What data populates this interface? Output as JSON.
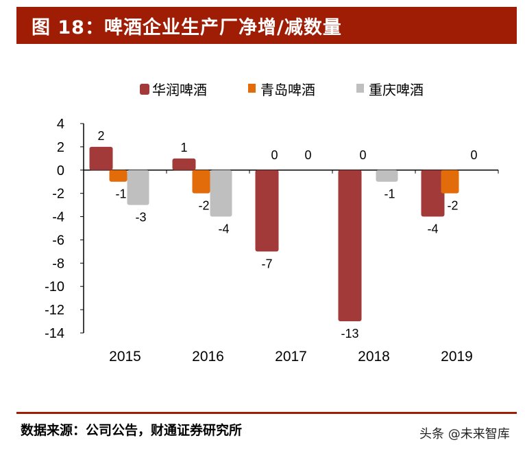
{
  "header": {
    "title": "图 18：啤酒企业生产厂净增/减数量"
  },
  "footer": {
    "source": "数据来源：公司公告，财通证券研究所",
    "watermark": "头条 @未来智库"
  },
  "chart_data": {
    "type": "bar",
    "title": "",
    "categories": [
      "2015",
      "2016",
      "2017",
      "2018",
      "2019"
    ],
    "series": [
      {
        "name": "华润啤酒",
        "color": "#a23a3a",
        "values": [
          2,
          1,
          -7,
          -13,
          -4
        ]
      },
      {
        "name": "青岛啤酒",
        "color": "#e36c0a",
        "values": [
          -1,
          -2,
          0,
          0,
          -2
        ]
      },
      {
        "name": "重庆啤酒",
        "color": "#bfbfbf",
        "values": [
          -3,
          -4,
          0,
          -1,
          0
        ]
      }
    ],
    "ylim": [
      -14,
      4
    ],
    "yticks": [
      4,
      2,
      0,
      -2,
      -4,
      -6,
      -8,
      -10,
      -12,
      -14
    ],
    "legend": "top",
    "grid": false,
    "xlabel": "",
    "ylabel": ""
  }
}
